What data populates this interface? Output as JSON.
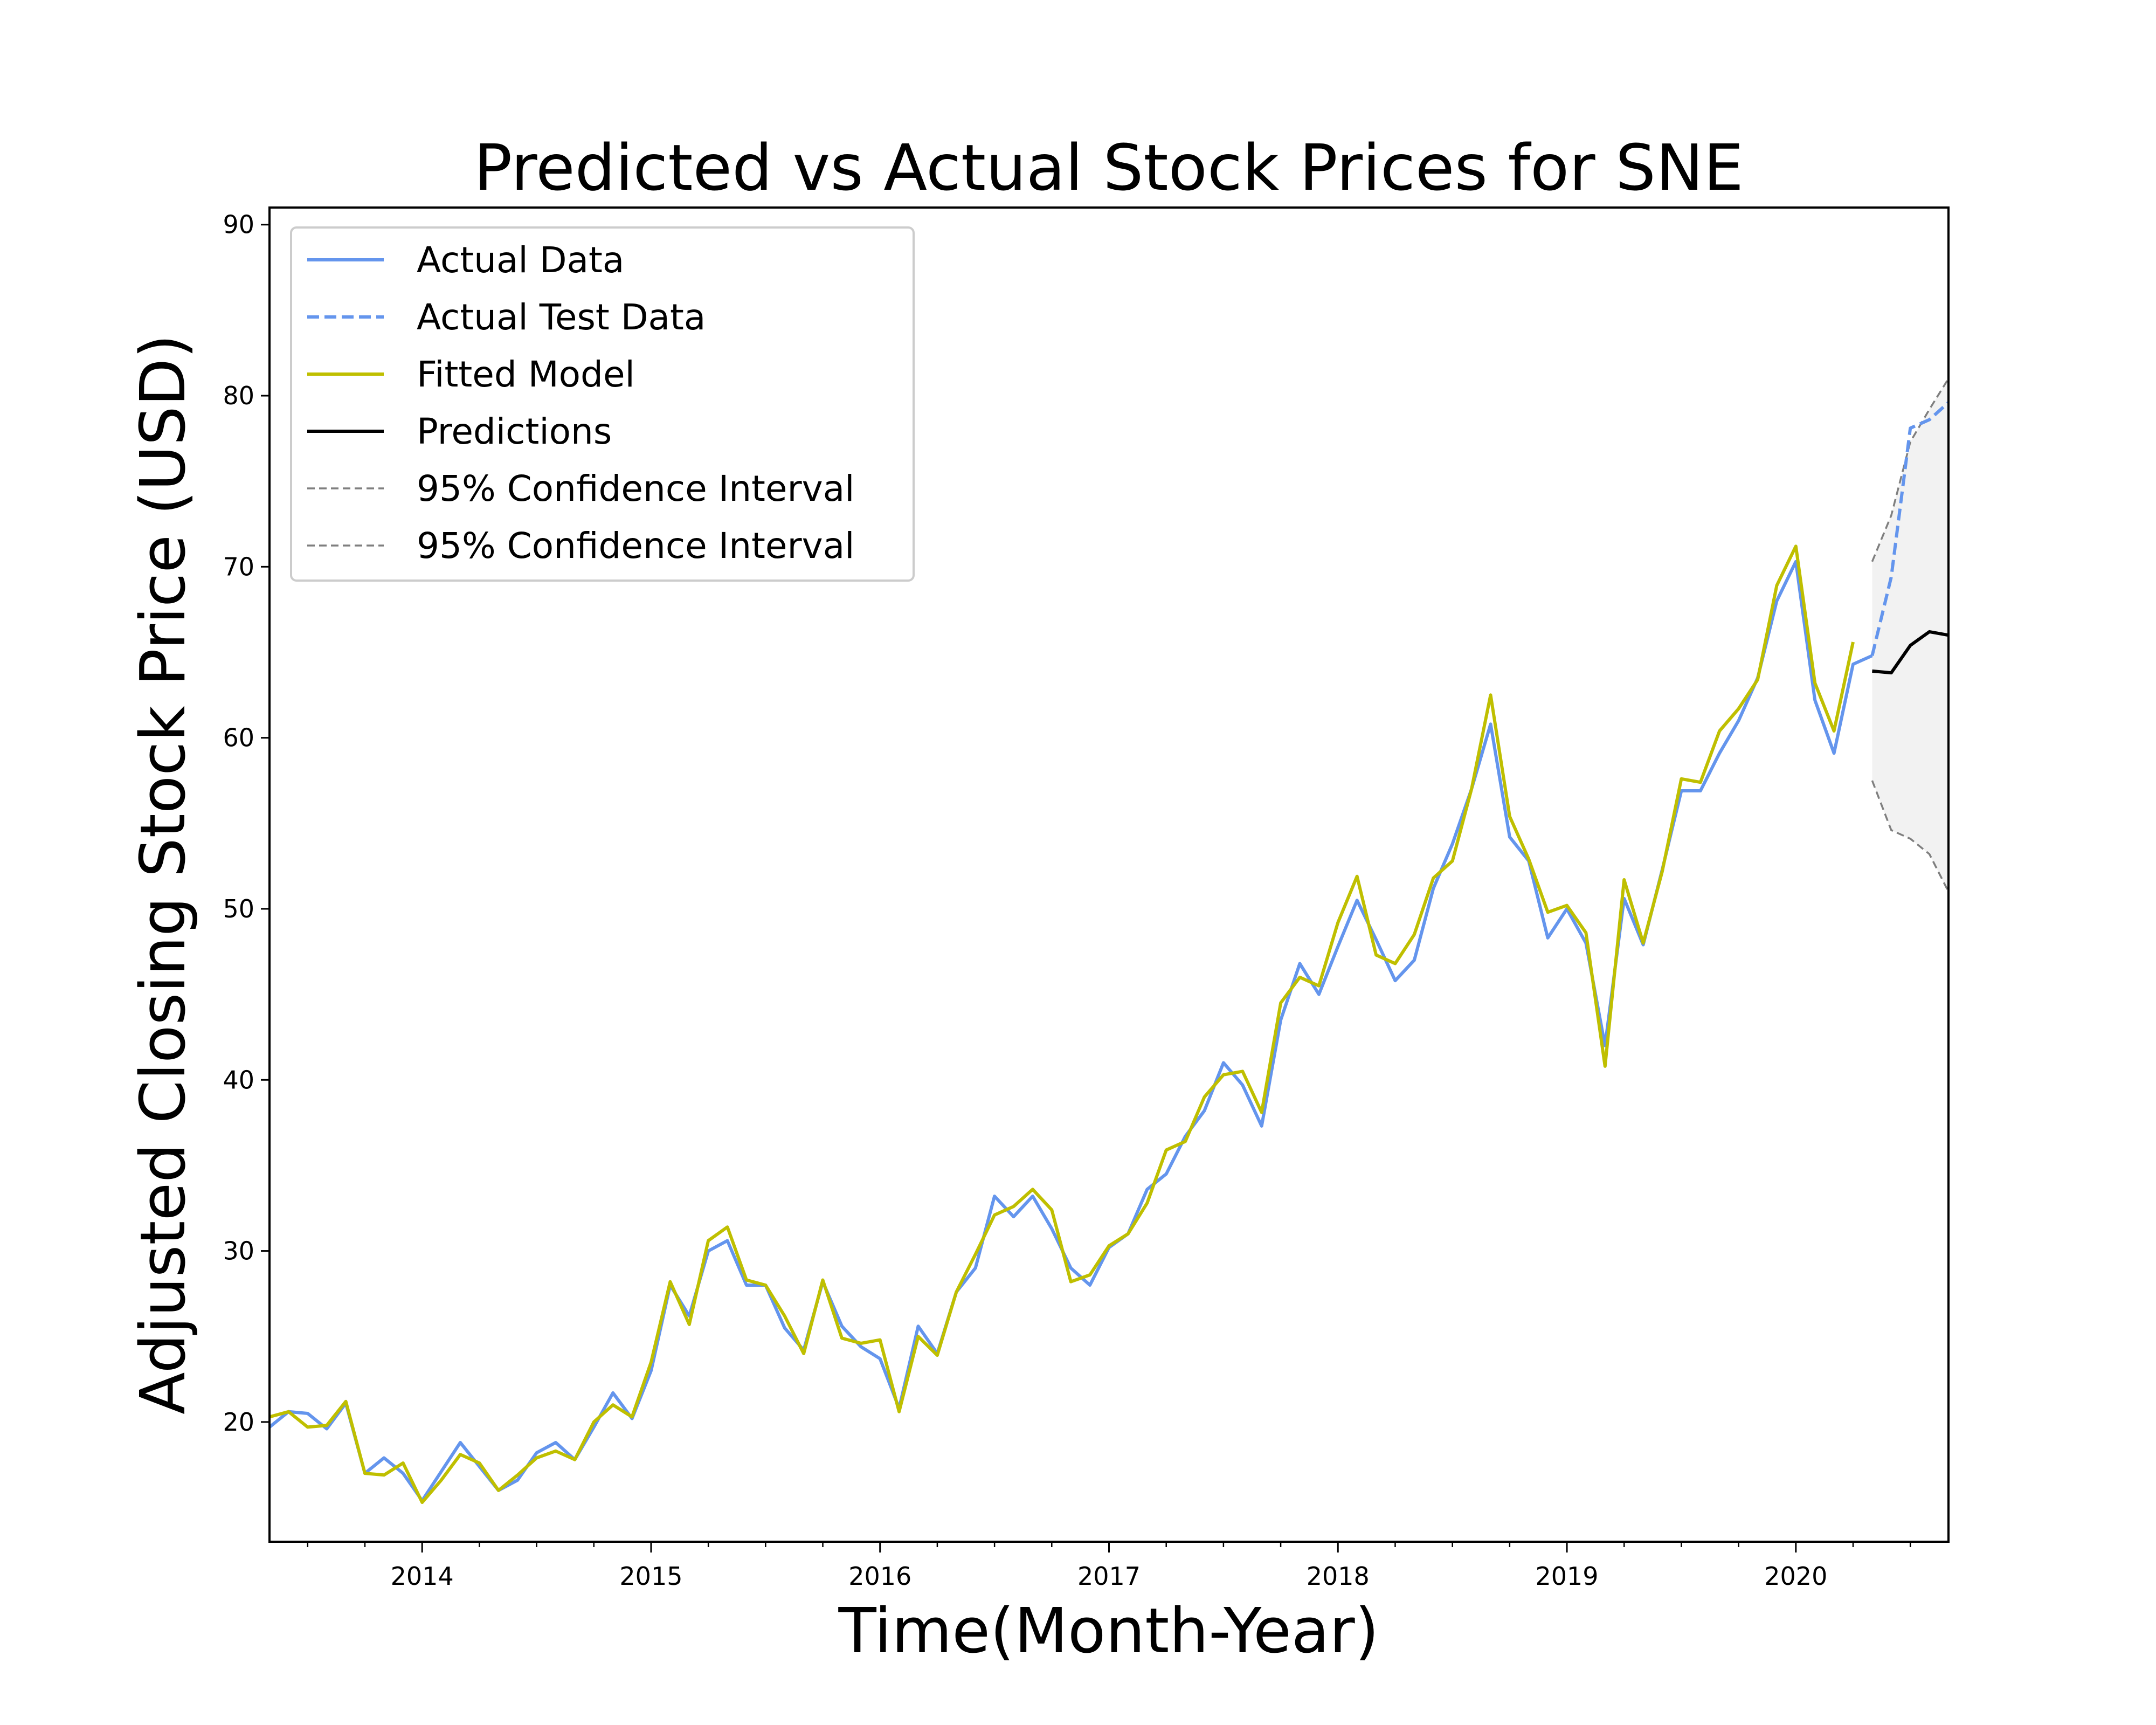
{
  "chart_data": {
    "type": "line",
    "title": "Predicted vs Actual Stock Prices for SNE",
    "xlabel": "Time(Month-Year)",
    "ylabel": "Adjusted Closing Stock Price (USD)",
    "xlim": [
      "2013-05",
      "2020-09"
    ],
    "ylim": [
      13,
      91
    ],
    "x_tick_labels": [
      "2014",
      "2015",
      "2016",
      "2017",
      "2018",
      "2019",
      "2020"
    ],
    "y_tick_labels": [
      "20",
      "30",
      "40",
      "50",
      "60",
      "70",
      "80",
      "90"
    ],
    "grid": false,
    "legend_position": "top-left",
    "series": [
      {
        "name": "Actual Data",
        "style": "solid",
        "color": "#6495ED",
        "x": [
          "2013-05",
          "2013-06",
          "2013-07",
          "2013-08",
          "2013-09",
          "2013-10",
          "2013-11",
          "2013-12",
          "2014-01",
          "2014-02",
          "2014-03",
          "2014-04",
          "2014-05",
          "2014-06",
          "2014-07",
          "2014-08",
          "2014-09",
          "2014-10",
          "2014-11",
          "2014-12",
          "2015-01",
          "2015-02",
          "2015-03",
          "2015-04",
          "2015-05",
          "2015-06",
          "2015-07",
          "2015-08",
          "2015-09",
          "2015-10",
          "2015-11",
          "2015-12",
          "2016-01",
          "2016-02",
          "2016-03",
          "2016-04",
          "2016-05",
          "2016-06",
          "2016-07",
          "2016-08",
          "2016-09",
          "2016-10",
          "2016-11",
          "2016-12",
          "2017-01",
          "2017-02",
          "2017-03",
          "2017-04",
          "2017-05",
          "2017-06",
          "2017-07",
          "2017-08",
          "2017-09",
          "2017-10",
          "2017-11",
          "2017-12",
          "2018-01",
          "2018-02",
          "2018-03",
          "2018-04",
          "2018-05",
          "2018-06",
          "2018-07",
          "2018-08",
          "2018-09",
          "2018-10",
          "2018-11",
          "2018-12",
          "2019-01",
          "2019-02",
          "2019-03",
          "2019-04",
          "2019-05",
          "2019-06",
          "2019-07",
          "2019-08",
          "2019-09",
          "2019-10",
          "2019-11",
          "2019-12",
          "2020-01",
          "2020-02",
          "2020-03",
          "2020-04",
          "2020-05"
        ],
        "values": [
          19.7,
          20.6,
          20.5,
          19.6,
          21.1,
          17.0,
          17.9,
          17.0,
          15.4,
          17.1,
          18.8,
          17.4,
          16.0,
          16.6,
          18.2,
          18.8,
          17.8,
          19.7,
          21.7,
          20.2,
          23.0,
          28.0,
          26.2,
          30.0,
          30.6,
          28.0,
          28.0,
          25.5,
          24.2,
          28.2,
          25.6,
          24.4,
          23.7,
          20.8,
          25.6,
          24.0,
          27.6,
          29.0,
          33.2,
          32.0,
          33.2,
          31.3,
          29.0,
          28.0,
          30.2,
          31.0,
          33.6,
          34.5,
          36.7,
          38.2,
          41.0,
          39.7,
          37.3,
          43.5,
          46.8,
          45.0,
          47.8,
          50.5,
          48.2,
          45.8,
          47.0,
          51.2,
          53.8,
          57.0,
          60.8,
          54.2,
          52.8,
          48.3,
          50.0,
          48.0,
          42.0,
          50.6,
          47.9,
          52.3,
          56.9,
          56.9,
          59.1,
          61.0,
          63.5,
          68.0,
          70.3,
          62.2,
          59.1,
          64.3,
          64.8
        ]
      },
      {
        "name": "Actual Test Data",
        "style": "dashed",
        "color": "#6495ED",
        "x": [
          "2020-05",
          "2020-06",
          "2020-07",
          "2020-08",
          "2020-09"
        ],
        "values": [
          64.8,
          69.4,
          78.1,
          78.6,
          79.6
        ]
      },
      {
        "name": "Fitted Model",
        "style": "solid",
        "color": "#BFBF00",
        "x": [
          "2013-05",
          "2013-06",
          "2013-07",
          "2013-08",
          "2013-09",
          "2013-10",
          "2013-11",
          "2013-12",
          "2014-01",
          "2014-02",
          "2014-03",
          "2014-04",
          "2014-05",
          "2014-06",
          "2014-07",
          "2014-08",
          "2014-09",
          "2014-10",
          "2014-11",
          "2014-12",
          "2015-01",
          "2015-02",
          "2015-03",
          "2015-04",
          "2015-05",
          "2015-06",
          "2015-07",
          "2015-08",
          "2015-09",
          "2015-10",
          "2015-11",
          "2015-12",
          "2016-01",
          "2016-02",
          "2016-03",
          "2016-04",
          "2016-05",
          "2016-06",
          "2016-07",
          "2016-08",
          "2016-09",
          "2016-10",
          "2016-11",
          "2016-12",
          "2017-01",
          "2017-02",
          "2017-03",
          "2017-04",
          "2017-05",
          "2017-06",
          "2017-07",
          "2017-08",
          "2017-09",
          "2017-10",
          "2017-11",
          "2017-12",
          "2018-01",
          "2018-02",
          "2018-03",
          "2018-04",
          "2018-05",
          "2018-06",
          "2018-07",
          "2018-08",
          "2018-09",
          "2018-10",
          "2018-11",
          "2018-12",
          "2019-01",
          "2019-02",
          "2019-03",
          "2019-04",
          "2019-05",
          "2019-06",
          "2019-07",
          "2019-08",
          "2019-09",
          "2019-10",
          "2019-11",
          "2019-12",
          "2020-01",
          "2020-02",
          "2020-03",
          "2020-04"
        ],
        "values": [
          20.3,
          20.6,
          19.7,
          19.8,
          21.2,
          17.0,
          16.9,
          17.6,
          15.3,
          16.6,
          18.1,
          17.6,
          16.0,
          16.9,
          17.9,
          18.3,
          17.8,
          20.0,
          21.0,
          20.3,
          23.5,
          28.2,
          25.7,
          30.6,
          31.4,
          28.3,
          28.0,
          26.2,
          24.0,
          28.3,
          24.9,
          24.6,
          24.8,
          20.6,
          25.0,
          23.9,
          27.6,
          29.8,
          32.1,
          32.6,
          33.6,
          32.4,
          28.2,
          28.6,
          30.3,
          31.0,
          32.8,
          35.9,
          36.4,
          39.0,
          40.3,
          40.5,
          38.1,
          44.5,
          46.0,
          45.5,
          49.2,
          51.9,
          47.3,
          46.8,
          48.5,
          51.8,
          52.8,
          57.0,
          62.5,
          55.4,
          52.9,
          49.8,
          50.2,
          48.6,
          40.8,
          51.7,
          48.0,
          52.2,
          57.6,
          57.4,
          60.4,
          61.7,
          63.4,
          68.9,
          71.2,
          63.2,
          60.4,
          65.6
        ]
      },
      {
        "name": "Predictions",
        "style": "solid",
        "color": "#000000",
        "x": [
          "2020-05",
          "2020-06",
          "2020-07",
          "2020-08",
          "2020-09"
        ],
        "values": [
          63.9,
          63.8,
          65.4,
          66.2,
          66.0
        ]
      },
      {
        "name": "95% Confidence Interval",
        "style": "dashed-thin",
        "color": "#7f7f7f",
        "x": [
          "2020-05",
          "2020-06",
          "2020-07",
          "2020-08",
          "2020-09"
        ],
        "values": [
          70.3,
          73.0,
          77.3,
          79.2,
          81.0
        ]
      },
      {
        "name": "95% Confidence Interval",
        "style": "dashed-thin",
        "color": "#7f7f7f",
        "x": [
          "2020-05",
          "2020-06",
          "2020-07",
          "2020-08",
          "2020-09"
        ],
        "values": [
          57.5,
          54.6,
          54.1,
          53.2,
          51.0
        ]
      }
    ],
    "confidence_band_color": "#f2f2f2"
  }
}
